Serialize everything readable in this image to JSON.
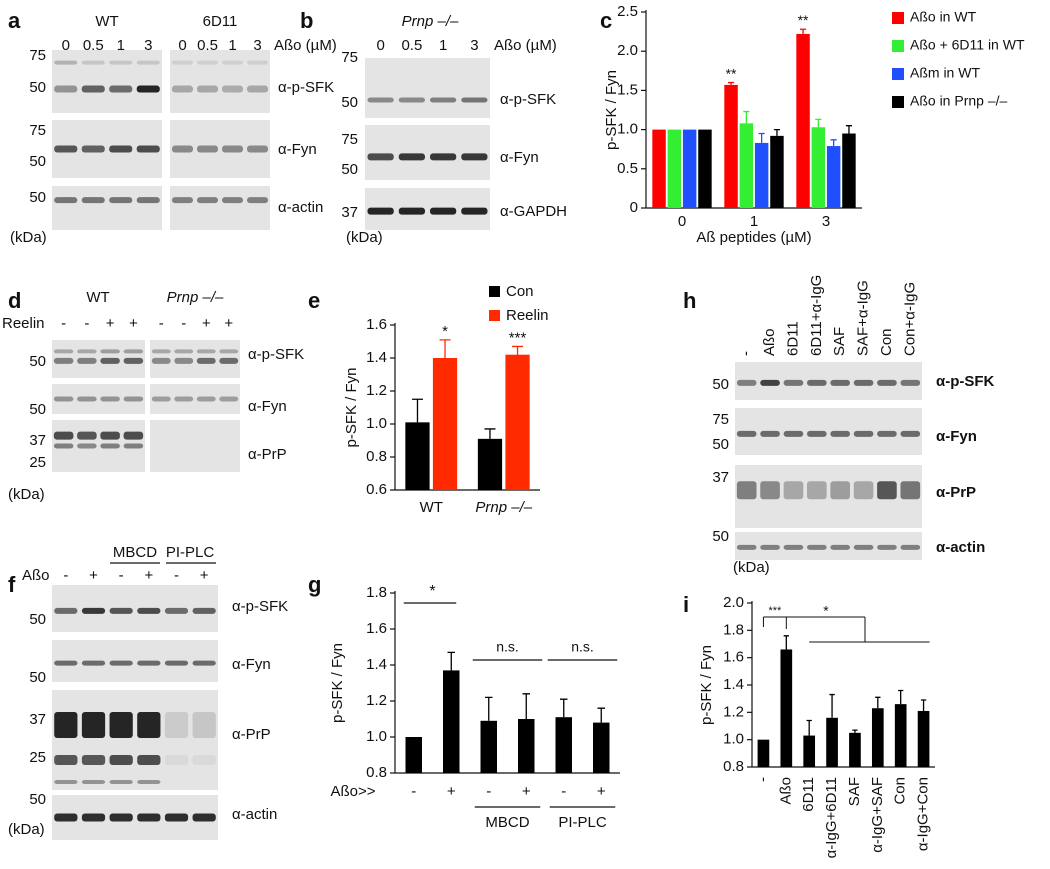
{
  "blots": {
    "a": {
      "label": "a",
      "groups": [
        "WT",
        "6D11"
      ],
      "doses": [
        [
          0,
          0.5,
          1,
          3
        ],
        [
          0,
          0.5,
          1,
          3
        ]
      ],
      "dose_label": "Aßo (µM)",
      "rows": [
        {
          "markers": [
            75,
            50
          ],
          "antibody": "α-p-SFK"
        },
        {
          "markers": [
            75,
            50
          ],
          "antibody": "α-Fyn"
        },
        {
          "markers": [
            50
          ],
          "antibody": "α-actin"
        }
      ],
      "unit": "(kDa)"
    },
    "b": {
      "label": "b",
      "groups": [
        "Prnp –/–"
      ],
      "doses": [
        [
          0,
          0.5,
          1,
          3
        ]
      ],
      "dose_label": "Aßo (µM)",
      "rows": [
        {
          "markers": [
            75,
            50
          ],
          "antibody": "α-p-SFK"
        },
        {
          "markers": [
            75,
            50
          ],
          "antibody": "α-Fyn"
        },
        {
          "markers": [
            37
          ],
          "antibody": "α-GAPDH"
        }
      ],
      "unit": "(kDa)"
    },
    "d": {
      "label": "d",
      "groups": [
        "WT",
        "Prnp –/–"
      ],
      "treatment": "Reelin",
      "lanes": [
        [
          "-",
          "-",
          "+",
          "+"
        ],
        [
          "-",
          "-",
          "+",
          "+"
        ]
      ],
      "rows": [
        {
          "markers": [
            50
          ],
          "antibody": "α-p-SFK"
        },
        {
          "markers": [
            50
          ],
          "antibody": "α-Fyn"
        },
        {
          "markers": [
            37,
            25
          ],
          "antibody": "α-PrP"
        }
      ],
      "unit": "(kDa)"
    },
    "f": {
      "label": "f",
      "groups": [
        "MBCD",
        "PI-PLC"
      ],
      "treatment": "Aßo",
      "lanes": [
        "-",
        "+",
        "-",
        "+",
        "-",
        "+"
      ],
      "rows": [
        {
          "markers": [
            50
          ],
          "antibody": "α-p-SFK"
        },
        {
          "markers": [
            50
          ],
          "antibody": "α-Fyn"
        },
        {
          "markers": [
            37,
            25
          ],
          "antibody": "α-PrP"
        },
        {
          "markers": [
            50
          ],
          "antibody": "α-actin"
        }
      ],
      "unit": "(kDa)"
    },
    "h": {
      "label": "h",
      "lanes": [
        "-",
        "Aßo",
        "6D11",
        "6D11+α-IgG",
        "SAF",
        "SAF+α-IgG",
        "Con",
        "Con+α-IgG"
      ],
      "rows": [
        {
          "markers": [
            50
          ],
          "antibody": "α-p-SFK"
        },
        {
          "markers": [
            75,
            50
          ],
          "antibody": "α-Fyn"
        },
        {
          "markers": [
            37
          ],
          "antibody": "α-PrP"
        },
        {
          "markers": [
            50
          ],
          "antibody": "α-actin"
        }
      ],
      "unit": "(kDa)"
    }
  },
  "chart_data": [
    {
      "type": "bar",
      "label": "c",
      "ylabel": "p-SFK / Fyn",
      "xlabel": "Aß peptides (µM)",
      "categories": [
        "0",
        "1",
        "3"
      ],
      "series": [
        {
          "name": "Aßo in WT",
          "color": "#ff0000",
          "values": [
            1,
            1.57,
            2.22
          ],
          "errors": [
            null,
            0.03,
            0.06
          ]
        },
        {
          "name": "Aßo + 6D11 in WT",
          "color": "#33ee33",
          "values": [
            1,
            1.08,
            1.03
          ],
          "errors": [
            null,
            0.15,
            0.1
          ]
        },
        {
          "name": "Aßm in WT",
          "color": "#1f4fff",
          "values": [
            1,
            0.83,
            0.79
          ],
          "errors": [
            null,
            0.12,
            0.08
          ]
        },
        {
          "name": "Aßo in Prnp –/–",
          "color": "#000000",
          "values": [
            1,
            0.92,
            0.95
          ],
          "errors": [
            null,
            0.08,
            0.1
          ]
        }
      ],
      "ylim": [
        0,
        2.5
      ],
      "yticks": [
        0,
        0.5,
        {
          "value": 1,
          "label": "1.0"
        },
        1.5,
        {
          "value": 2,
          "label": "2.0"
        },
        2.5
      ],
      "annotations": [
        "**",
        "**"
      ],
      "legend": "right"
    },
    {
      "type": "bar",
      "label": "e",
      "ylabel": "p-SFK / Fyn",
      "categories": [
        "WT",
        "Prnp –/–"
      ],
      "series": [
        {
          "name": "Con",
          "color": "#000000",
          "values": [
            1.01,
            0.91
          ],
          "errors": [
            0.14,
            0.06
          ]
        },
        {
          "name": "Reelin",
          "color": "#ff2a00",
          "values": [
            1.4,
            1.42
          ],
          "errors": [
            0.11,
            0.05
          ]
        }
      ],
      "ylim": [
        0.6,
        1.6
      ],
      "yticks": [
        0.6,
        0.8,
        {
          "value": 1,
          "label": "1.0"
        },
        1.2,
        1.4,
        1.6
      ],
      "annotations": [
        "*",
        "***"
      ],
      "legend": "top"
    },
    {
      "type": "bar",
      "label": "g",
      "ylabel": "p-SFK / Fyn",
      "categories": [
        "-",
        "+",
        "-",
        "+",
        "-",
        "+"
      ],
      "treatment": "Aßo>>",
      "groups": [
        "MBCD",
        "PI-PLC"
      ],
      "series": [
        {
          "color": "#000000",
          "values": [
            1.0,
            1.37,
            1.09,
            1.1,
            1.11,
            1.08
          ],
          "errors": [
            null,
            0.1,
            0.13,
            0.14,
            0.1,
            0.08
          ]
        }
      ],
      "ylim": [
        0.8,
        1.8
      ],
      "yticks": [
        0.8,
        {
          "value": 1,
          "label": "1.0"
        },
        1.2,
        1.4,
        1.6,
        1.8
      ],
      "annotations": [
        "*",
        "n.s.",
        "n.s."
      ]
    },
    {
      "type": "bar",
      "label": "i",
      "ylabel": "p-SFK / Fyn",
      "categories": [
        "-",
        "Aßo",
        "6D11",
        "α-IgG+6D11",
        "SAF",
        "α-IgG+SAF",
        "Con",
        "α-IgG+Con"
      ],
      "series": [
        {
          "color": "#000000",
          "values": [
            1.0,
            1.66,
            1.03,
            1.16,
            1.05,
            1.23,
            1.26,
            1.21
          ],
          "errors": [
            null,
            0.1,
            0.11,
            0.17,
            0.02,
            0.08,
            0.1,
            0.08
          ]
        }
      ],
      "ylim": [
        0.8,
        2.0
      ],
      "yticks": [
        0.8,
        {
          "value": 1,
          "label": "1.0"
        },
        1.2,
        1.4,
        1.6,
        1.8,
        {
          "value": 2,
          "label": "2.0"
        }
      ],
      "annotations": [
        "***",
        "*"
      ]
    }
  ]
}
